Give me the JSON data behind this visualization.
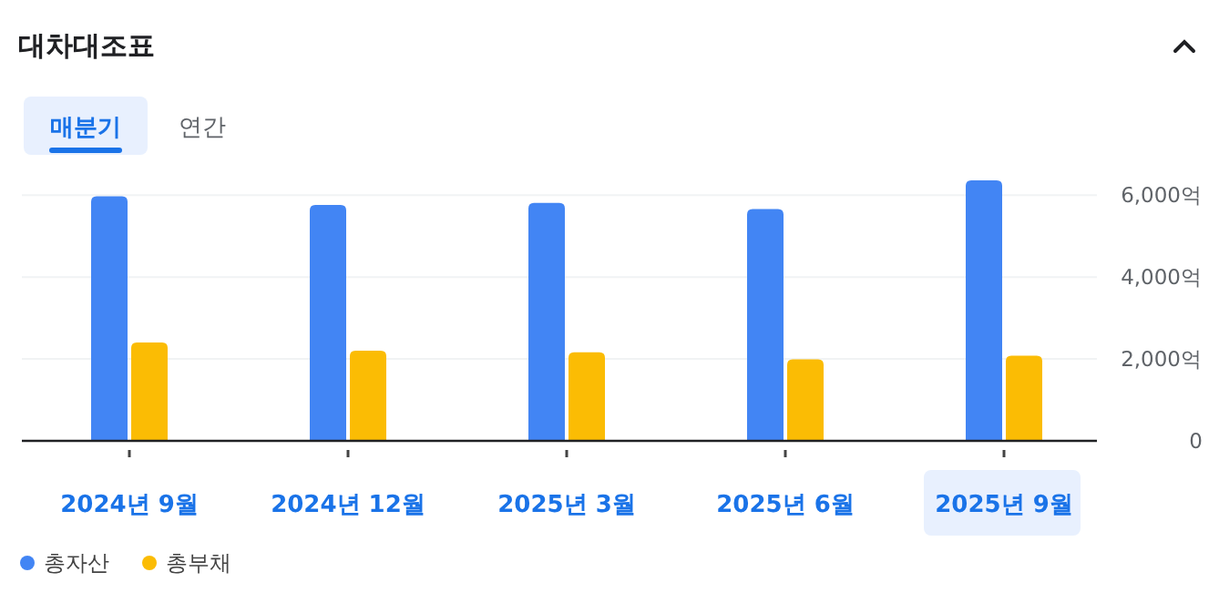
{
  "chart_data": {
    "type": "bar",
    "title": "대차대조표",
    "annotations": [
      "매분기",
      "연간"
    ],
    "categories": [
      "2024년 9월",
      "2024년 12월",
      "2025년 3월",
      "2025년 6월",
      "2025년 9월"
    ],
    "series": [
      {
        "name": "총자산",
        "color": "#4285f4",
        "values": [
          5970,
          5760,
          5810,
          5660,
          6360
        ]
      },
      {
        "name": "총부채",
        "color": "#fbbc04",
        "values": [
          2400,
          2200,
          2160,
          1990,
          2080
        ]
      }
    ],
    "yticks": [
      0,
      {
        "value": 2000,
        "label": "2,000억"
      },
      {
        "value": 4000,
        "label": "4,000억"
      },
      {
        "value": 6000,
        "label": "6,000억"
      }
    ],
    "ylim": [
      0,
      6360
    ],
    "grid": "y",
    "legend": "bottom left"
  }
}
